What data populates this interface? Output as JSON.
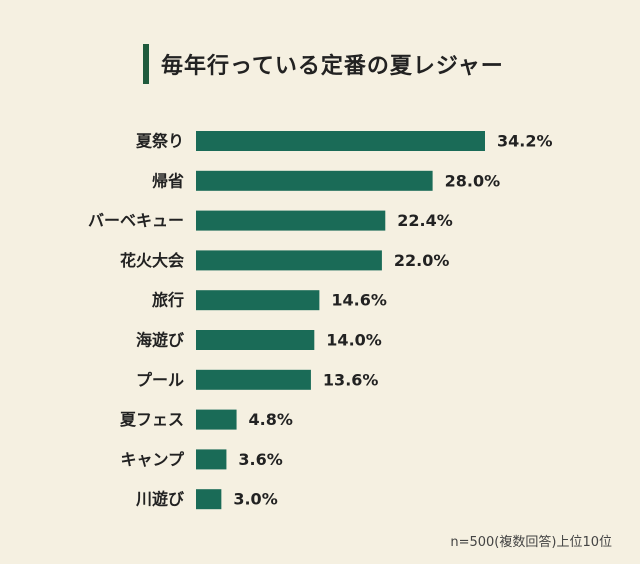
{
  "chart_data": {
    "type": "bar",
    "orientation": "horizontal",
    "title": "毎年行っている定番の夏レジャー",
    "categories": [
      "夏祭り",
      "帰省",
      "バーベキュー",
      "花火大会",
      "旅行",
      "海遊び",
      "プール",
      "夏フェス",
      "キャンプ",
      "川遊び"
    ],
    "values": [
      34.2,
      28.0,
      22.4,
      22.0,
      14.6,
      14.0,
      13.6,
      4.8,
      3.6,
      3.0
    ],
    "value_labels": [
      "34.2%",
      "28.0%",
      "22.4%",
      "22.0%",
      "14.6%",
      "14.0%",
      "13.6%",
      "4.8%",
      "3.6%",
      "3.0%"
    ],
    "xlim": [
      0,
      100
    ],
    "grid": false,
    "bar_color": "#1a6b57",
    "footnote": "n=500(複数回答)上位10位"
  },
  "colors": {
    "background": "#f5f0e1",
    "title_accent": "#1f5a3c",
    "text": "#222222"
  }
}
